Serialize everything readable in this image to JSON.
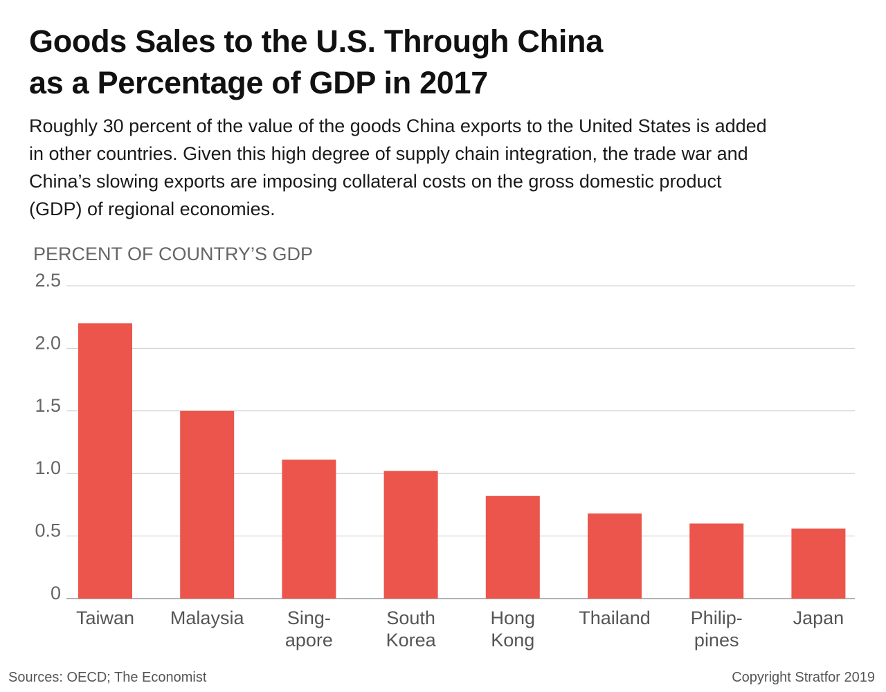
{
  "title_lines": [
    "Goods Sales to the U.S. Through China",
    "as a Percentage of GDP in 2017"
  ],
  "subtitle_lines": [
    "Roughly 30 percent of the value of the goods China exports to the United States is added",
    "in other countries. Given this high degree of supply chain integration, the trade war and",
    "China’s slowing exports are imposing collateral costs on the gross domestic product",
    "(GDP) of regional economies."
  ],
  "footer": {
    "sources": "Sources: OECD; The Economist",
    "copyright": "Copyright Stratfor 2019"
  },
  "colors": {
    "bar": "#EB554B",
    "grid": "#cccccc",
    "axis_text": "#666666",
    "category_text": "#555555"
  },
  "chart_data": {
    "type": "bar",
    "ylabel": "PERCENT OF COUNTRY’S GDP",
    "categories": [
      [
        "Taiwan"
      ],
      [
        "Malaysia"
      ],
      [
        "Sing-",
        "apore"
      ],
      [
        "South",
        "Korea"
      ],
      [
        "Hong",
        "Kong"
      ],
      [
        "Thailand"
      ],
      [
        "Philip-",
        "pines"
      ],
      [
        "Japan"
      ]
    ],
    "values": [
      2.2,
      1.5,
      1.11,
      1.02,
      0.82,
      0.68,
      0.6,
      0.56
    ],
    "ylim": [
      0,
      2.5
    ],
    "yticks": [
      "0",
      "0.5",
      "1.0",
      "1.5",
      "2.0",
      "2.5"
    ],
    "ytick_values": [
      0,
      0.5,
      1.0,
      1.5,
      2.0,
      2.5
    ],
    "grid": true,
    "legend": "none"
  }
}
